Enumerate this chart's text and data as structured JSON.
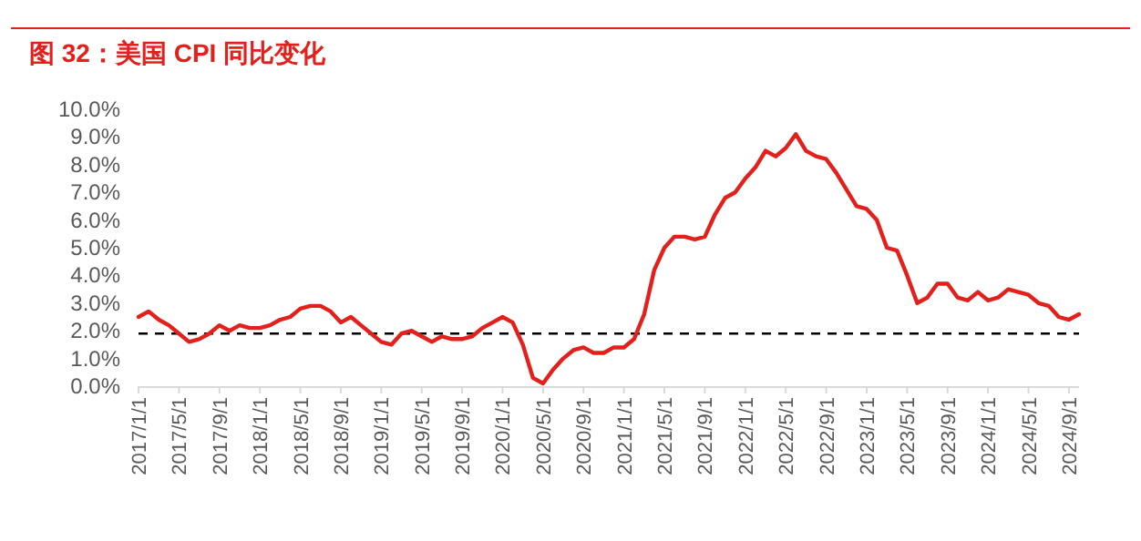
{
  "chart_data": {
    "type": "line",
    "title": "图 32：美国 CPI 同比变化",
    "categories": [
      "2017/1/1",
      null,
      null,
      null,
      "2017/5/1",
      null,
      null,
      null,
      "2017/9/1",
      null,
      null,
      null,
      "2018/1/1",
      null,
      null,
      null,
      "2018/5/1",
      null,
      null,
      null,
      "2018/9/1",
      null,
      null,
      null,
      "2019/1/1",
      null,
      null,
      null,
      "2019/5/1",
      null,
      null,
      null,
      "2019/9/1",
      null,
      null,
      null,
      "2020/1/1",
      null,
      null,
      null,
      "2020/5/1",
      null,
      null,
      null,
      "2020/9/1",
      null,
      null,
      null,
      "2021/1/1",
      null,
      null,
      null,
      "2021/5/1",
      null,
      null,
      null,
      "2021/9/1",
      null,
      null,
      null,
      "2022/1/1",
      null,
      null,
      null,
      "2022/5/1",
      null,
      null,
      null,
      "2022/9/1",
      null,
      null,
      null,
      "2023/1/1",
      null,
      null,
      null,
      "2023/5/1",
      null,
      null,
      null,
      "2023/9/1",
      null,
      null,
      null,
      "2024/1/1",
      null,
      null,
      null,
      "2024/5/1",
      null,
      null,
      null,
      "2024/9/1",
      null
    ],
    "series": [
      {
        "color": "#e3201b",
        "values": [
          2.5,
          2.7,
          2.4,
          2.2,
          1.9,
          1.6,
          1.7,
          1.9,
          2.2,
          2.0,
          2.2,
          2.1,
          2.1,
          2.2,
          2.4,
          2.5,
          2.8,
          2.9,
          2.9,
          2.7,
          2.3,
          2.5,
          2.2,
          1.9,
          1.6,
          1.5,
          1.9,
          2.0,
          1.8,
          1.6,
          1.8,
          1.7,
          1.7,
          1.8,
          2.1,
          2.3,
          2.5,
          2.3,
          1.5,
          0.3,
          0.1,
          0.6,
          1.0,
          1.3,
          1.4,
          1.2,
          1.2,
          1.4,
          1.4,
          1.7,
          2.6,
          4.2,
          5.0,
          5.4,
          5.4,
          5.3,
          5.4,
          6.2,
          6.8,
          7.0,
          7.5,
          7.9,
          8.5,
          8.3,
          8.6,
          9.1,
          8.5,
          8.3,
          8.2,
          7.7,
          7.1,
          6.5,
          6.4,
          6.0,
          5.0,
          4.9,
          4.0,
          3.0,
          3.2,
          3.7,
          3.7,
          3.2,
          3.1,
          3.4,
          3.1,
          3.2,
          3.5,
          3.4,
          3.3,
          3.0,
          2.9,
          2.5,
          2.4,
          2.6
        ]
      }
    ],
    "ylim": [
      0,
      10
    ],
    "yticks": [
      {
        "value": 0,
        "label": "0.0%"
      },
      {
        "value": 1,
        "label": "1.0%"
      },
      {
        "value": 2,
        "label": "2.0%"
      },
      {
        "value": 3,
        "label": "3.0%"
      },
      {
        "value": 4,
        "label": "4.0%"
      },
      {
        "value": 5,
        "label": "5.0%"
      },
      {
        "value": 6,
        "label": "6.0%"
      },
      {
        "value": 7,
        "label": "7.0%"
      },
      {
        "value": 8,
        "label": "8.0%"
      },
      {
        "value": 9,
        "label": "9.0%"
      },
      {
        "value": 10,
        "label": "10.0%"
      }
    ],
    "ref_lines": [
      {
        "axis": "y",
        "value": 1.9,
        "color": "#000000",
        "line_style": "dashed"
      }
    ],
    "grid": false,
    "marker": "none",
    "line_style": "solid"
  }
}
